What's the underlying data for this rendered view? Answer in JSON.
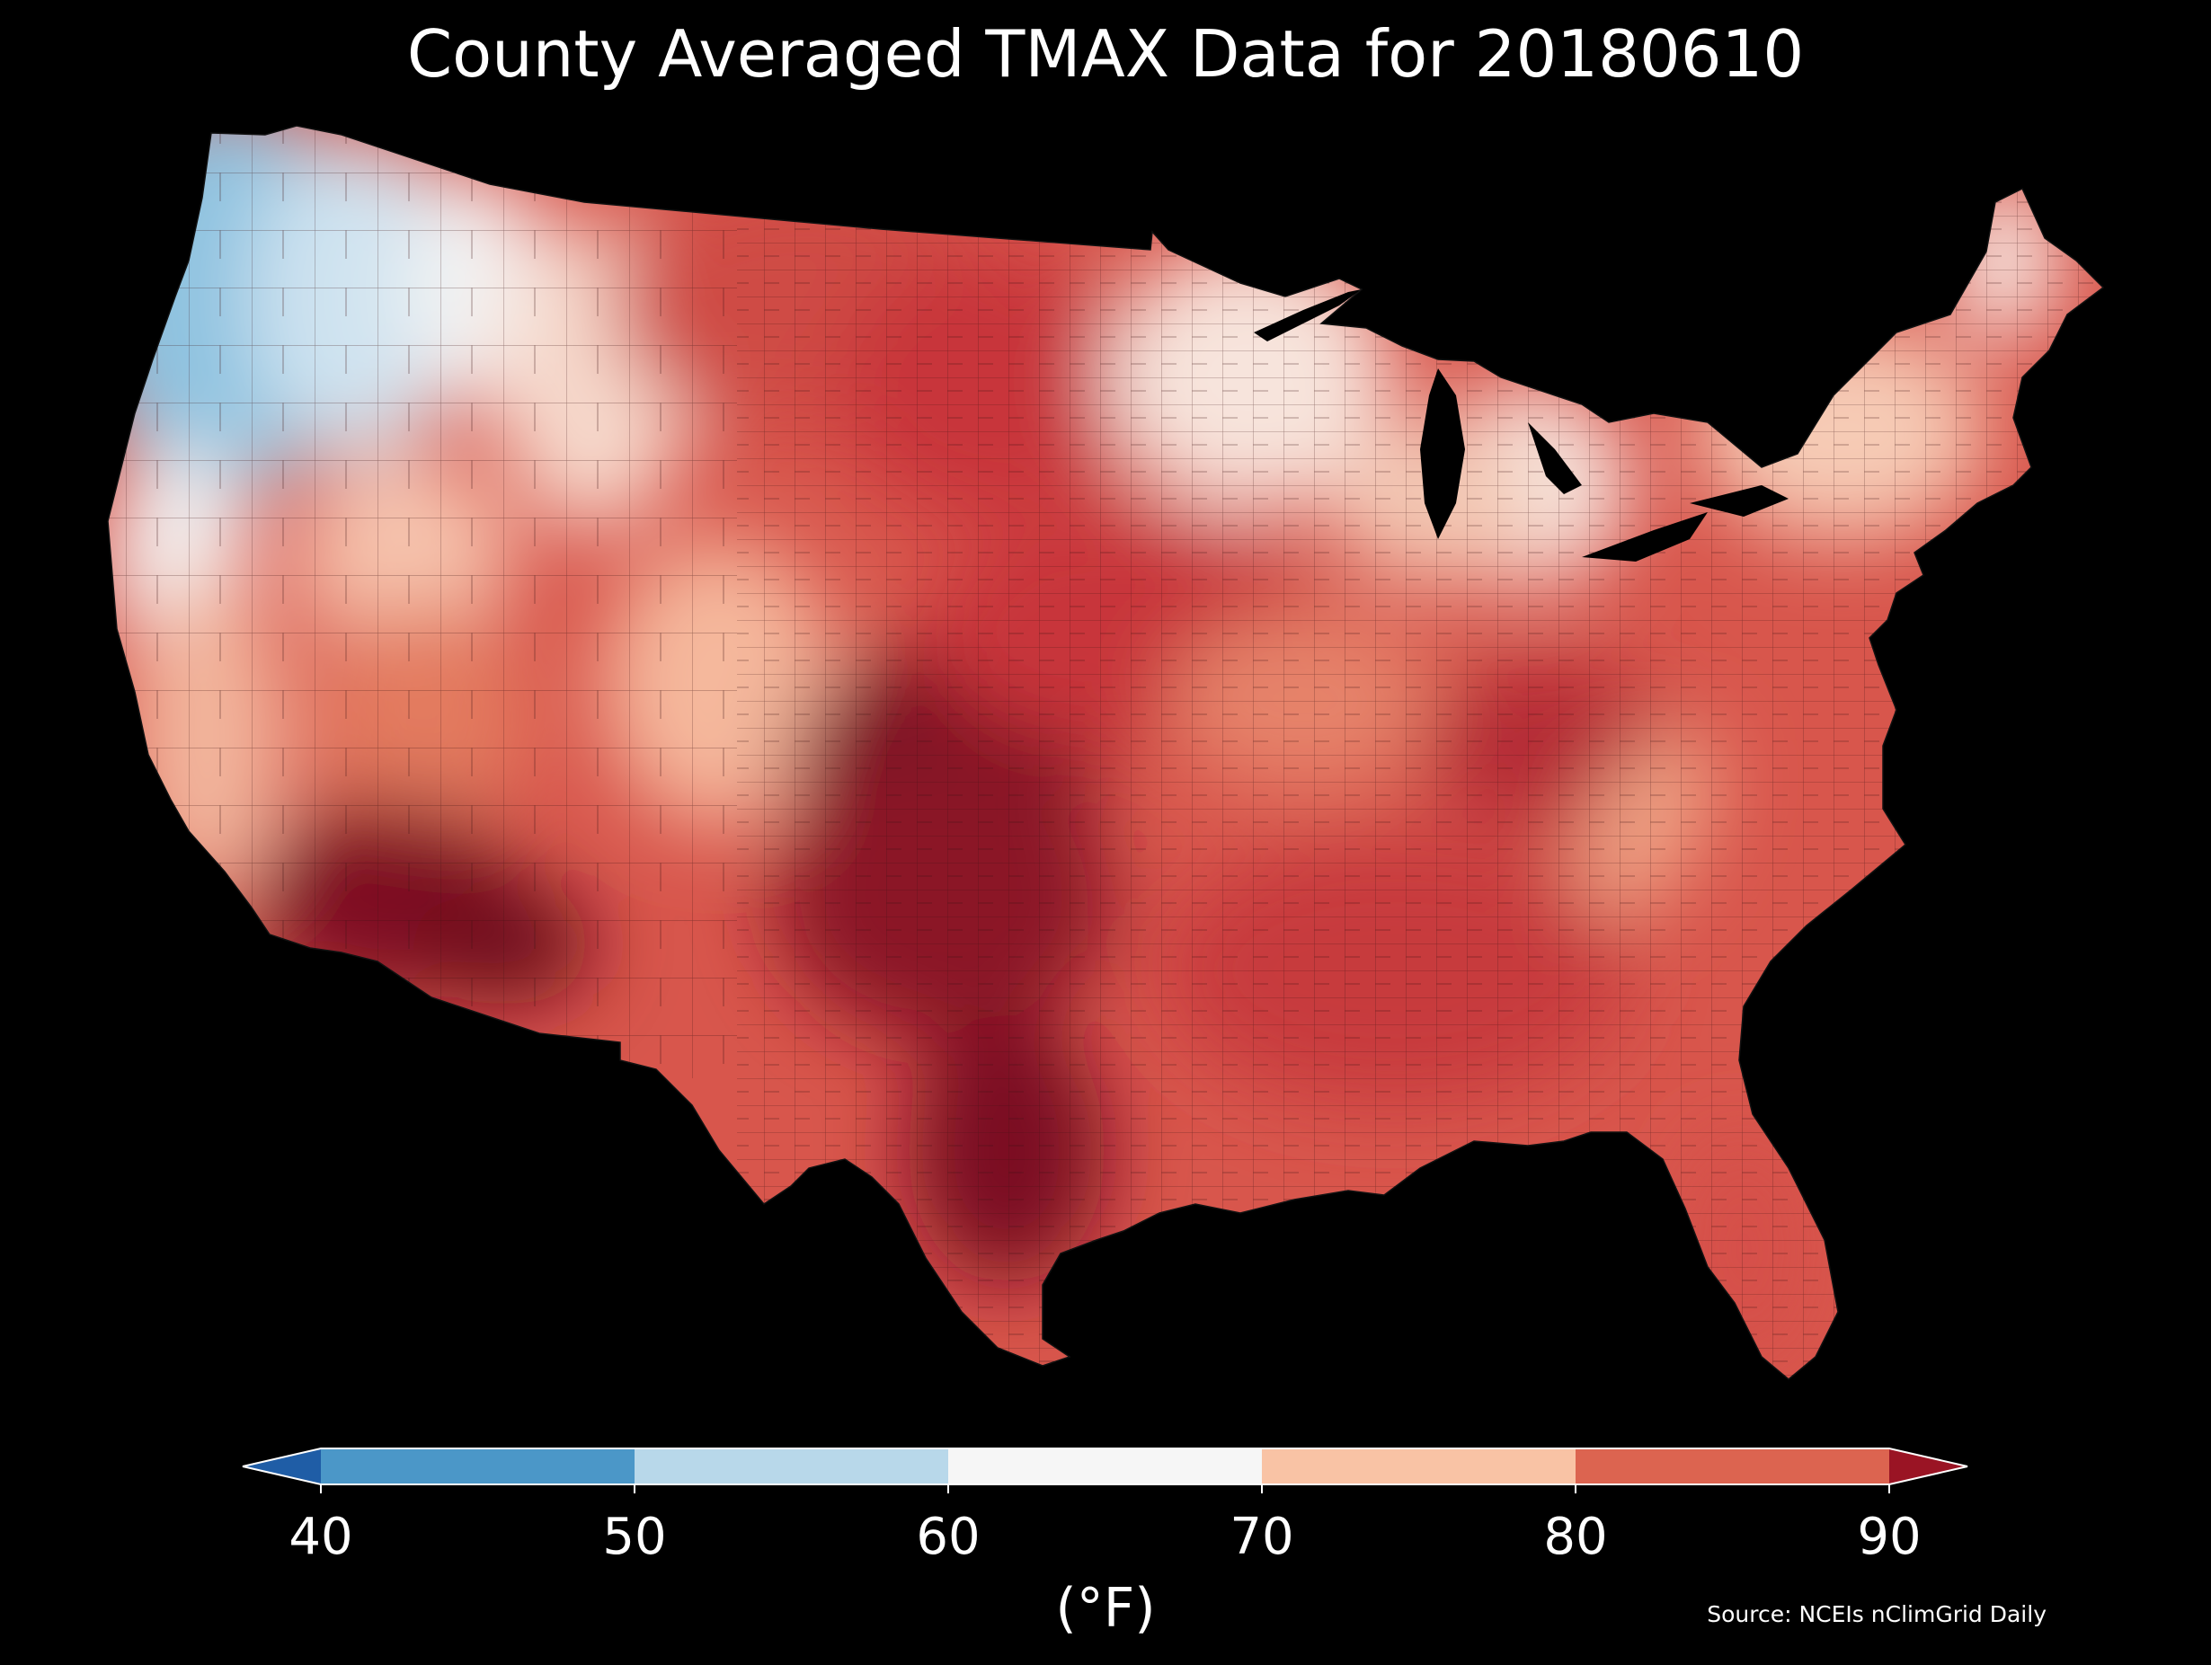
{
  "title": "County Averaged TMAX Data for 20180610",
  "colorbar": {
    "label": "(°F)",
    "ticks": [
      "40",
      "50",
      "60",
      "70",
      "80",
      "90"
    ],
    "bins": [
      {
        "range": "<40",
        "color": "#1f5da6"
      },
      {
        "range": "40-50",
        "color": "#4b97c8"
      },
      {
        "range": "50-60",
        "color": "#b8d8ea"
      },
      {
        "range": "60-70",
        "color": "#f6f6f6"
      },
      {
        "range": "70-80",
        "color": "#f9c3a5"
      },
      {
        "range": "80-90",
        "color": "#dc6450"
      },
      {
        "range": ">90",
        "color": "#9a1424"
      }
    ]
  },
  "source": "Source: NCEIs nClimGrid Daily",
  "map": {
    "region": "Contiguous United States counties",
    "background": "#000000",
    "county_border_color": "#3a1010",
    "regions": [
      {
        "name": "pacific-northwest",
        "color": "#8fc3e0"
      },
      {
        "name": "inland-northwest",
        "color": "#cfe3f0"
      },
      {
        "name": "northern-rockies",
        "color": "#f6d9cc"
      },
      {
        "name": "northern-plains",
        "color": "#cf4c45"
      },
      {
        "name": "upper-midwest",
        "color": "#f7e4dc"
      },
      {
        "name": "california-coast",
        "color": "#f2b59c"
      },
      {
        "name": "great-basin",
        "color": "#e37a5f"
      },
      {
        "name": "desert-southwest",
        "color": "#7f0d22"
      },
      {
        "name": "southern-rockies",
        "color": "#f5b89c"
      },
      {
        "name": "southern-plains",
        "color": "#8b1226"
      },
      {
        "name": "central-plains",
        "color": "#c8363a"
      },
      {
        "name": "midwest",
        "color": "#e6836b"
      },
      {
        "name": "ohio-valley",
        "color": "#d2584d"
      },
      {
        "name": "appalachians",
        "color": "#f0a486"
      },
      {
        "name": "southeast",
        "color": "#c73b3d"
      },
      {
        "name": "texas-gulf",
        "color": "#9a1a2a"
      },
      {
        "name": "northeast",
        "color": "#f6cbb5"
      },
      {
        "name": "new-england-north",
        "color": "#f8ece6"
      },
      {
        "name": "florida",
        "color": "#d5504a"
      }
    ]
  }
}
